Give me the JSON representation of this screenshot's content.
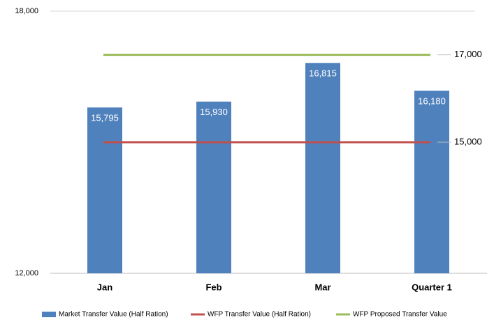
{
  "chart_data": {
    "type": "bar",
    "categories": [
      "Jan",
      "Feb",
      "Mar",
      "Quarter 1"
    ],
    "series": [
      {
        "name": "Market Transfer Value (Half Ration)",
        "type": "bar",
        "color": "#4f81bd",
        "values": [
          15795,
          15930,
          16815,
          16180
        ],
        "value_labels": [
          "15,795",
          "15,930",
          "16,815",
          "16,180"
        ]
      },
      {
        "name": "WFP Transfer Value (Half Ration)",
        "type": "line",
        "color": "#c0504d",
        "values": [
          15000,
          15000,
          15000,
          15000
        ],
        "value_labels": [
          null,
          null,
          null,
          "15,000"
        ]
      },
      {
        "name": "WFP Proposed Transfer Value",
        "type": "line",
        "color": "#9bbb59",
        "values": [
          17000,
          17000,
          17000,
          17000
        ],
        "value_labels": [
          null,
          null,
          null,
          "17,000"
        ]
      }
    ],
    "ylim": [
      12000,
      18000
    ],
    "yticks": [
      {
        "value": 12000,
        "label": "12,000"
      },
      {
        "value": 18000,
        "label": "18,000"
      }
    ],
    "grid": true,
    "legend": "bottom"
  }
}
